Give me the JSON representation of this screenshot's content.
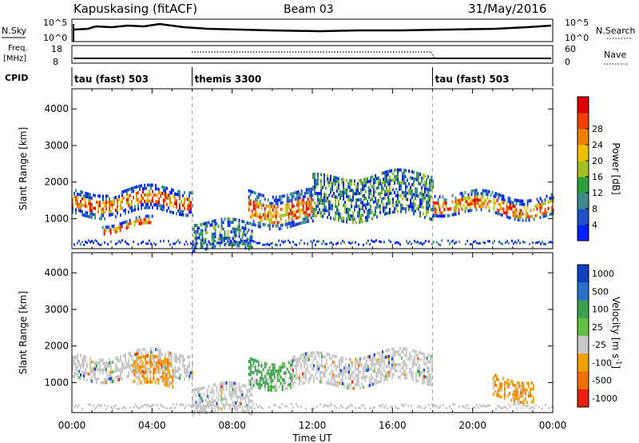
{
  "header": {
    "site": "Kapuskasing (fitACF)",
    "beam": "Beam 03",
    "date": "31/May/2016"
  },
  "nsky_panel": {
    "left_label": "N.Sky",
    "right_label": "N.Search",
    "left_ticks": [
      "10^5",
      "10^0"
    ],
    "right_ticks": [
      "10^5",
      "10^0"
    ]
  },
  "freq_panel": {
    "left_label_1": "Freq.",
    "left_label_2": "[MHz]",
    "right_label": "Nave",
    "left_ticks": [
      "18",
      "8"
    ],
    "right_ticks": [
      "60",
      "0"
    ]
  },
  "cpid": {
    "label": "CPID",
    "segments": [
      {
        "name": "tau (fast) 503",
        "start": 0
      },
      {
        "name": "themis 3300",
        "start": 6
      },
      {
        "name": "tau (fast) 503",
        "start": 18
      }
    ]
  },
  "chart_data": [
    {
      "type": "heatmap",
      "name": "power",
      "xlabel": "Time UT",
      "ylabel": "Slant Range [km]",
      "xlim": [
        0,
        24
      ],
      "ylim": [
        180,
        4550
      ],
      "yticks": [
        "1000",
        "2000",
        "3000",
        "4000"
      ],
      "colorbar": {
        "label": "Power [dB]",
        "ticks": [
          "4",
          "8",
          "12",
          "16",
          "20",
          "24",
          "28"
        ],
        "colors": [
          "#0020ff",
          "#2050c8",
          "#3c8c8c",
          "#2ca03c",
          "#a0c020",
          "#f0c000",
          "#f08000",
          "#f04000",
          "#e00000"
        ]
      },
      "features": [
        {
          "t0": 0,
          "t1": 6,
          "r0": 1150,
          "r1": 1800,
          "level": "high"
        },
        {
          "t0": 1.5,
          "t1": 4,
          "r0": 700,
          "r1": 950,
          "level": "high"
        },
        {
          "t0": 6,
          "t1": 9,
          "r0": 200,
          "r1": 900,
          "level": "medium"
        },
        {
          "t0": 8.8,
          "t1": 12,
          "r0": 900,
          "r1": 1800,
          "level": "high"
        },
        {
          "t0": 12,
          "t1": 18,
          "r0": 1000,
          "r1": 2200,
          "level": "medium"
        },
        {
          "t0": 18,
          "t1": 24,
          "r0": 1100,
          "r1": 1700,
          "level": "high"
        }
      ]
    },
    {
      "type": "heatmap",
      "name": "velocity",
      "xlabel": "Time UT",
      "ylabel": "Slant Range [km]",
      "xlim": [
        0,
        24
      ],
      "ylim": [
        180,
        4550
      ],
      "yticks": [
        "1000",
        "2000",
        "3000",
        "4000"
      ],
      "xticks": [
        "00:00",
        "04:00",
        "08:00",
        "12:00",
        "16:00",
        "20:00",
        "00:00"
      ],
      "colorbar": {
        "label": "Velocity [m s",
        "label_sup": "-1",
        "label_end": "]",
        "ticks": [
          "1000",
          "500",
          "100",
          "25",
          "-25",
          "-100",
          "-500",
          "-1000"
        ],
        "colors": [
          "#1040c0",
          "#2870c8",
          "#3ca050",
          "#60c040",
          "#c8c8c8",
          "#f0a000",
          "#f07000",
          "#e82010"
        ]
      },
      "features": [
        {
          "t0": 0,
          "t1": 6,
          "r0": 1150,
          "r1": 1800,
          "level": "gray"
        },
        {
          "t0": 3,
          "t1": 5,
          "r0": 900,
          "r1": 1600,
          "level": "orange"
        },
        {
          "t0": 6,
          "t1": 9,
          "r0": 200,
          "r1": 900,
          "level": "gray"
        },
        {
          "t0": 8.8,
          "t1": 11,
          "r0": 1000,
          "r1": 1700,
          "level": "green"
        },
        {
          "t0": 11,
          "t1": 18,
          "r0": 1000,
          "r1": 1800,
          "level": "gray"
        },
        {
          "t0": 21,
          "t1": 23,
          "r0": 600,
          "r1": 1200,
          "level": "orange"
        }
      ]
    }
  ]
}
